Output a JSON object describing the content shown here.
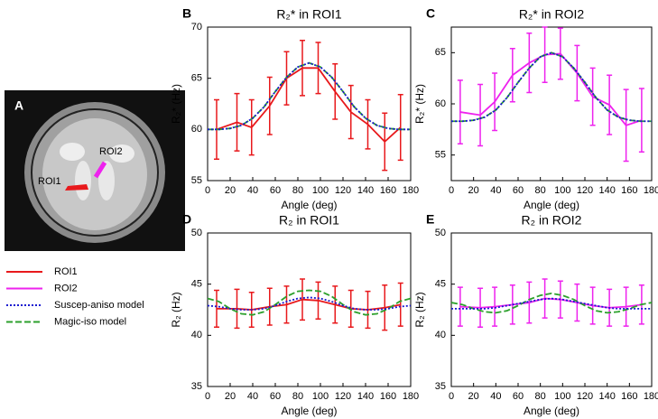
{
  "panel_a": {
    "label": "A",
    "rois": [
      "ROI1",
      "ROI2"
    ]
  },
  "legend": [
    {
      "name": "ROI1",
      "color": "#e8191c",
      "dash": "solid"
    },
    {
      "name": "ROI2",
      "color": "#ee22ee",
      "dash": "solid"
    },
    {
      "name": "Suscep-aniso model",
      "color": "#1a1ad0",
      "dash": "dotted"
    },
    {
      "name": "Magic-iso model",
      "color": "#2ca02c",
      "dash": "dashed"
    }
  ],
  "chart_data": [
    {
      "type": "line",
      "panel": "B",
      "title": "R₂* in ROI1",
      "xlabel": "Angle (deg)",
      "ylabel": "R₂* (Hz)",
      "xlim": [
        0,
        180
      ],
      "xticks": [
        0,
        20,
        40,
        60,
        80,
        100,
        120,
        140,
        160,
        180
      ],
      "ylim": [
        55,
        70
      ],
      "yticks": [
        55,
        60,
        65,
        70
      ],
      "x": [
        8,
        26,
        39,
        55,
        70,
        84,
        98,
        113,
        127,
        142,
        157,
        171
      ],
      "series": [
        {
          "color": "#e8191c",
          "values": [
            60.0,
            60.7,
            60.2,
            62.3,
            65.0,
            66.0,
            66.0,
            63.7,
            61.7,
            60.5,
            58.8,
            60.2
          ],
          "errors": [
            2.9,
            2.8,
            2.7,
            2.8,
            2.6,
            2.7,
            2.5,
            2.7,
            2.6,
            2.4,
            2.8,
            3.2
          ]
        }
      ],
      "model_x": [
        0,
        10,
        20,
        30,
        40,
        50,
        60,
        70,
        80,
        90,
        100,
        110,
        120,
        130,
        140,
        150,
        160,
        170,
        180
      ],
      "models": [
        {
          "color": "#2ca02c",
          "dash": "dashed",
          "values": [
            60.0,
            60.0,
            60.1,
            60.4,
            61.1,
            62.2,
            63.7,
            65.1,
            66.1,
            66.5,
            66.1,
            65.1,
            63.7,
            62.2,
            61.1,
            60.4,
            60.1,
            60.0,
            60.0
          ]
        },
        {
          "color": "#1a1ad0",
          "dash": "dotted",
          "values": [
            60.0,
            60.0,
            60.1,
            60.4,
            61.1,
            62.2,
            63.7,
            65.1,
            66.1,
            66.5,
            66.1,
            65.1,
            63.7,
            62.2,
            61.1,
            60.4,
            60.1,
            60.0,
            60.0
          ]
        }
      ]
    },
    {
      "type": "line",
      "panel": "C",
      "title": "R₂* in ROI2",
      "xlabel": "Angle (deg)",
      "ylabel": "R₂* (Hz)",
      "xlim": [
        0,
        180
      ],
      "xticks": [
        0,
        20,
        40,
        60,
        80,
        100,
        120,
        140,
        160,
        180
      ],
      "ylim": [
        52.5,
        67.5
      ],
      "yticks": [
        55,
        60,
        65
      ],
      "x": [
        8,
        26,
        39,
        55,
        70,
        84,
        98,
        113,
        127,
        142,
        157,
        171
      ],
      "series": [
        {
          "color": "#ee22ee",
          "values": [
            59.2,
            58.9,
            60.2,
            62.8,
            64.0,
            64.8,
            64.9,
            63.0,
            60.7,
            59.9,
            57.9,
            58.4
          ],
          "errors": [
            3.1,
            3.0,
            2.8,
            2.6,
            2.9,
            2.7,
            2.5,
            2.7,
            2.8,
            2.9,
            3.5,
            3.1
          ]
        }
      ],
      "model_x": [
        0,
        10,
        20,
        30,
        40,
        50,
        60,
        70,
        80,
        90,
        100,
        110,
        120,
        130,
        140,
        150,
        160,
        170,
        180
      ],
      "models": [
        {
          "color": "#2ca02c",
          "dash": "dashed",
          "values": [
            58.3,
            58.3,
            58.4,
            58.7,
            59.4,
            60.6,
            62.1,
            63.5,
            64.6,
            65.0,
            64.6,
            63.5,
            62.1,
            60.6,
            59.4,
            58.7,
            58.4,
            58.3,
            58.3
          ]
        },
        {
          "color": "#1a1ad0",
          "dash": "dotted",
          "values": [
            58.3,
            58.3,
            58.4,
            58.7,
            59.4,
            60.6,
            62.1,
            63.5,
            64.6,
            65.0,
            64.6,
            63.5,
            62.1,
            60.6,
            59.4,
            58.7,
            58.4,
            58.3,
            58.3
          ]
        }
      ]
    },
    {
      "type": "line",
      "panel": "D",
      "title": "R₂ in ROI1",
      "xlabel": "Angle (deg)",
      "ylabel": "R₂ (Hz)",
      "xlim": [
        0,
        180
      ],
      "xticks": [
        0,
        20,
        40,
        60,
        80,
        100,
        120,
        140,
        160,
        180
      ],
      "ylim": [
        35,
        50
      ],
      "yticks": [
        35,
        40,
        45,
        50
      ],
      "x": [
        8,
        26,
        39,
        55,
        70,
        84,
        98,
        113,
        127,
        142,
        157,
        171
      ],
      "series": [
        {
          "color": "#e8191c",
          "values": [
            42.6,
            42.6,
            42.5,
            42.8,
            43.0,
            43.5,
            43.4,
            43.0,
            42.6,
            42.5,
            42.7,
            43.0
          ],
          "errors": [
            1.8,
            1.9,
            1.7,
            1.8,
            1.8,
            2.0,
            1.8,
            1.8,
            1.8,
            1.8,
            2.2,
            2.1
          ]
        }
      ],
      "model_x": [
        0,
        10,
        20,
        30,
        40,
        50,
        60,
        70,
        80,
        90,
        100,
        110,
        120,
        130,
        140,
        150,
        160,
        170,
        180
      ],
      "models": [
        {
          "color": "#2ca02c",
          "dash": "dashed",
          "values": [
            43.6,
            43.3,
            42.6,
            42.1,
            42.0,
            42.3,
            43.0,
            43.8,
            44.3,
            44.4,
            44.3,
            43.8,
            43.0,
            42.3,
            42.0,
            42.1,
            42.6,
            43.3,
            43.6
          ]
        },
        {
          "color": "#1a1ad0",
          "dash": "dotted",
          "values": [
            42.9,
            42.8,
            42.6,
            42.5,
            42.5,
            42.6,
            42.9,
            43.3,
            43.6,
            43.7,
            43.6,
            43.3,
            42.9,
            42.6,
            42.5,
            42.5,
            42.6,
            42.8,
            42.9
          ]
        }
      ]
    },
    {
      "type": "line",
      "panel": "E",
      "title": "R₂ in ROI2",
      "xlabel": "Angle (deg)",
      "ylabel": "R₂ (Hz)",
      "xlim": [
        0,
        180
      ],
      "xticks": [
        0,
        20,
        40,
        60,
        80,
        100,
        120,
        140,
        160,
        180
      ],
      "ylim": [
        35,
        50
      ],
      "yticks": [
        35,
        40,
        45,
        50
      ],
      "x": [
        8,
        26,
        39,
        55,
        70,
        84,
        98,
        113,
        127,
        142,
        157,
        171
      ],
      "series": [
        {
          "color": "#ee22ee",
          "values": [
            42.8,
            42.7,
            42.8,
            43.0,
            43.2,
            43.6,
            43.5,
            43.2,
            42.9,
            42.7,
            42.8,
            43.0
          ],
          "errors": [
            1.9,
            1.9,
            1.9,
            1.9,
            2.0,
            1.9,
            1.8,
            1.8,
            1.8,
            1.8,
            1.9,
            1.9
          ]
        }
      ],
      "model_x": [
        0,
        10,
        20,
        30,
        40,
        50,
        60,
        70,
        80,
        90,
        100,
        110,
        120,
        130,
        140,
        150,
        160,
        170,
        180
      ],
      "models": [
        {
          "color": "#2ca02c",
          "dash": "dashed",
          "values": [
            43.2,
            43.0,
            42.6,
            42.3,
            42.2,
            42.4,
            42.9,
            43.5,
            43.9,
            44.1,
            43.9,
            43.5,
            42.9,
            42.4,
            42.2,
            42.3,
            42.6,
            43.0,
            43.2
          ]
        },
        {
          "color": "#1a1ad0",
          "dash": "dotted",
          "values": [
            42.6,
            42.6,
            42.6,
            42.6,
            42.7,
            42.9,
            43.1,
            43.3,
            43.5,
            43.6,
            43.5,
            43.3,
            43.1,
            42.9,
            42.7,
            42.6,
            42.6,
            42.6,
            42.6
          ]
        }
      ]
    }
  ]
}
